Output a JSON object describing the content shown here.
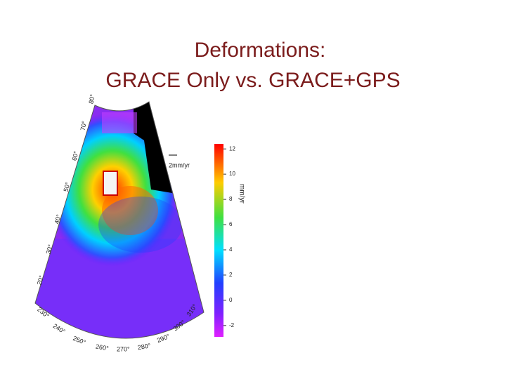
{
  "slide": {
    "title_lines": [
      "Deformations:",
      "GRACE Only vs. GRACE+GPS"
    ]
  },
  "figure": {
    "latitude_labels": [
      "80°",
      "70°",
      "60°",
      "50°",
      "40°",
      "30°",
      "20°"
    ],
    "longitude_labels": [
      "230°",
      "240°",
      "250°",
      "260°",
      "270°",
      "280°",
      "290°",
      "300°",
      "310°"
    ],
    "arrow_scale": "2mm/yr",
    "colorbar": {
      "ylim": [
        -2.9,
        12.4
      ],
      "yticks": [
        12,
        10,
        8,
        6,
        4,
        2,
        0,
        -2
      ],
      "label": "mm/yr"
    }
  }
}
